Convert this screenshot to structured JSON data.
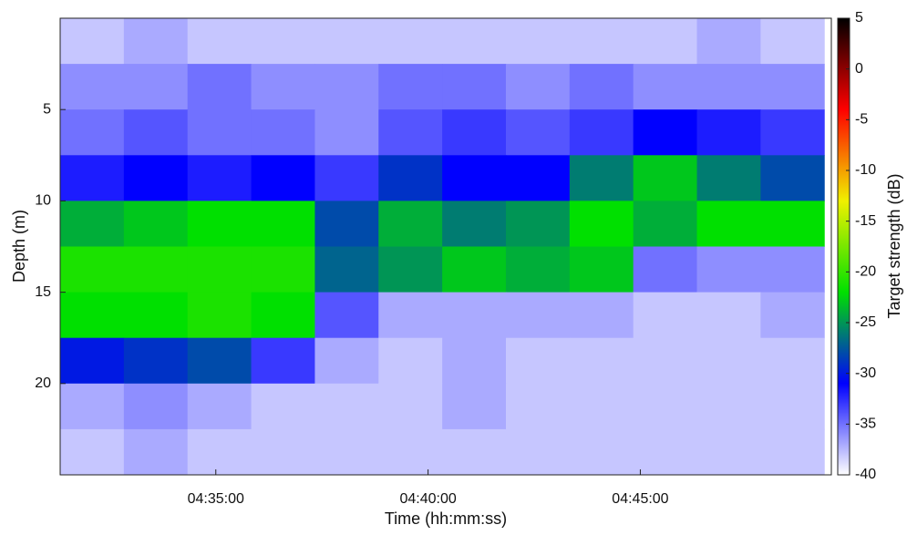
{
  "chart_data": {
    "type": "heatmap",
    "xlabel": "Time (hh:mm:ss)",
    "ylabel": "Depth (m)",
    "colorbar_label": "Target strength (dB)",
    "x": [
      16325,
      16415,
      16505,
      16595,
      16685,
      16775,
      16865,
      16955,
      17045,
      17135,
      17225,
      17315
    ],
    "y": [
      1.25,
      3.75,
      6.25,
      8.75,
      11.25,
      13.75,
      16.25,
      18.75,
      21.25,
      23.75
    ],
    "z": [
      [
        -38,
        -37,
        -38,
        -38,
        -38,
        -38,
        -38,
        -38,
        -38,
        -38,
        -37,
        -38
      ],
      [
        -36,
        -36,
        -35,
        -36,
        -36,
        -35,
        -35,
        -36,
        -35,
        -36,
        -36,
        -36
      ],
      [
        -35,
        -34,
        -35,
        -35,
        -36,
        -34,
        -33,
        -34,
        -33,
        -31,
        -32,
        -33
      ],
      [
        -32,
        -31,
        -32,
        -31,
        -33,
        -29,
        -31,
        -31,
        -26,
        -23,
        -26,
        -28
      ],
      [
        -24,
        -23,
        -22,
        -22,
        -28,
        -24,
        -26,
        -25,
        -22,
        -24,
        -22,
        -22
      ],
      [
        -21,
        -21,
        -21,
        -21,
        -27,
        -25,
        -23,
        -24,
        -23,
        -35,
        -36,
        -36
      ],
      [
        -22,
        -22,
        -21,
        -22,
        -34,
        -37,
        -37,
        -37,
        -37,
        -38,
        -38,
        -37
      ],
      [
        -30,
        -29,
        -28,
        -33,
        -37,
        -38,
        -37,
        -38,
        -38,
        -38,
        -38,
        -38
      ],
      [
        -37,
        -36,
        -37,
        -38,
        -38,
        -38,
        -37,
        -38,
        -38,
        -38,
        -38,
        -38
      ],
      [
        -38,
        -37,
        -38,
        -38,
        -38,
        -38,
        -38,
        -38,
        -38,
        -38,
        -38,
        -38
      ]
    ],
    "xlim": [
      16280,
      17370
    ],
    "xticks": [
      {
        "value": 16500,
        "label": "04:35:00"
      },
      {
        "value": 16800,
        "label": "04:40:00"
      },
      {
        "value": 17100,
        "label": "04:45:00"
      }
    ],
    "ylim": [
      0,
      25
    ],
    "y_reversed": true,
    "yticks": [
      5,
      10,
      15,
      20
    ],
    "clim": [
      -40,
      5
    ],
    "cticks": [
      5,
      0,
      -5,
      -10,
      -15,
      -20,
      -25,
      -30,
      -35,
      -40
    ],
    "colormap": [
      "#ffffff",
      "#0000ff",
      "#00e000",
      "#f0f000",
      "#ff0000",
      "#000000"
    ]
  }
}
